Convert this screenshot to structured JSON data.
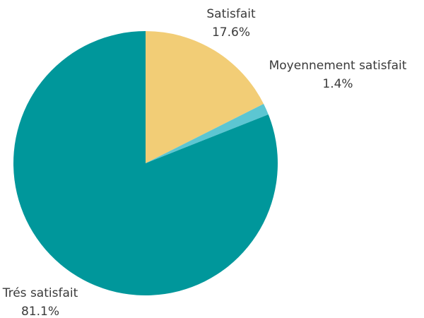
{
  "chart_data": {
    "type": "pie",
    "categories": [
      "Satisfait",
      "Moyennement satisfait",
      "Trés satisfait"
    ],
    "values": [
      17.6,
      1.4,
      81.1
    ],
    "value_labels": [
      "17.6%",
      "1.4%",
      "81.1%"
    ],
    "colors": [
      "#f2cd76",
      "#5cc6d2",
      "#00979b"
    ]
  }
}
